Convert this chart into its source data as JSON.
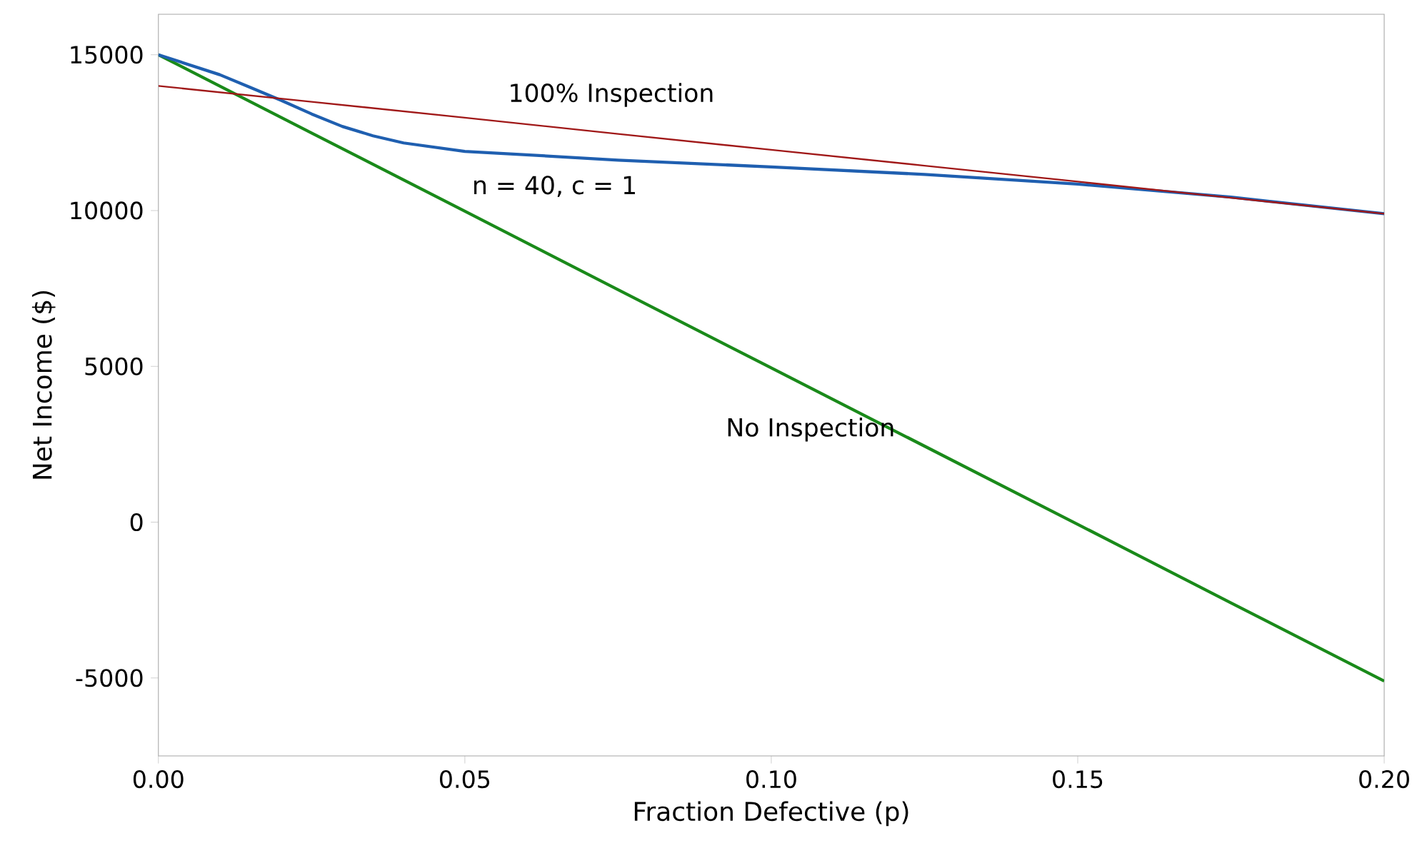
{
  "chart_data": {
    "type": "line",
    "xlabel": "Fraction Defective (p)",
    "ylabel": "Net Income ($)",
    "xlim": [
      0,
      0.2
    ],
    "ylim": [
      -7500,
      16300
    ],
    "xticks": [
      {
        "value": 0,
        "label": "0.00"
      },
      {
        "value": 0.05,
        "label": "0.05"
      },
      {
        "value": 0.1,
        "label": "0.10"
      },
      {
        "value": 0.15,
        "label": "0.15"
      },
      {
        "value": 0.2,
        "label": "0.20"
      }
    ],
    "yticks": [
      -5000,
      0,
      5000,
      10000,
      15000
    ],
    "grid": false,
    "legend": false,
    "marker": "none",
    "line_style": "solid",
    "series": [
      {
        "name": "100% Inspection",
        "color": "#a01818",
        "x": [
          0,
          0.025,
          0.05,
          0.075,
          0.1,
          0.125,
          0.15,
          0.175,
          0.2
        ],
        "values": [
          14000,
          13490,
          12980,
          12460,
          11950,
          11440,
          10930,
          10410,
          9900
        ]
      },
      {
        "name": "n = 40, c = 1",
        "color": "#1f5fb0",
        "x": [
          0,
          0.01,
          0.015,
          0.02,
          0.025,
          0.03,
          0.035,
          0.04,
          0.05,
          0.075,
          0.1,
          0.125,
          0.15,
          0.175,
          0.2
        ],
        "values": [
          15000,
          14360,
          13950,
          13540,
          13100,
          12700,
          12400,
          12170,
          11900,
          11620,
          11400,
          11160,
          10850,
          10430,
          9900
        ]
      },
      {
        "name": "No Inspection",
        "color": "#1a8a1a",
        "x": [
          0,
          0.025,
          0.05,
          0.075,
          0.1,
          0.125,
          0.15,
          0.175,
          0.2
        ],
        "values": [
          15000,
          12490,
          9980,
          7460,
          4950,
          2440,
          -70,
          -2590,
          -5100
        ]
      }
    ]
  }
}
